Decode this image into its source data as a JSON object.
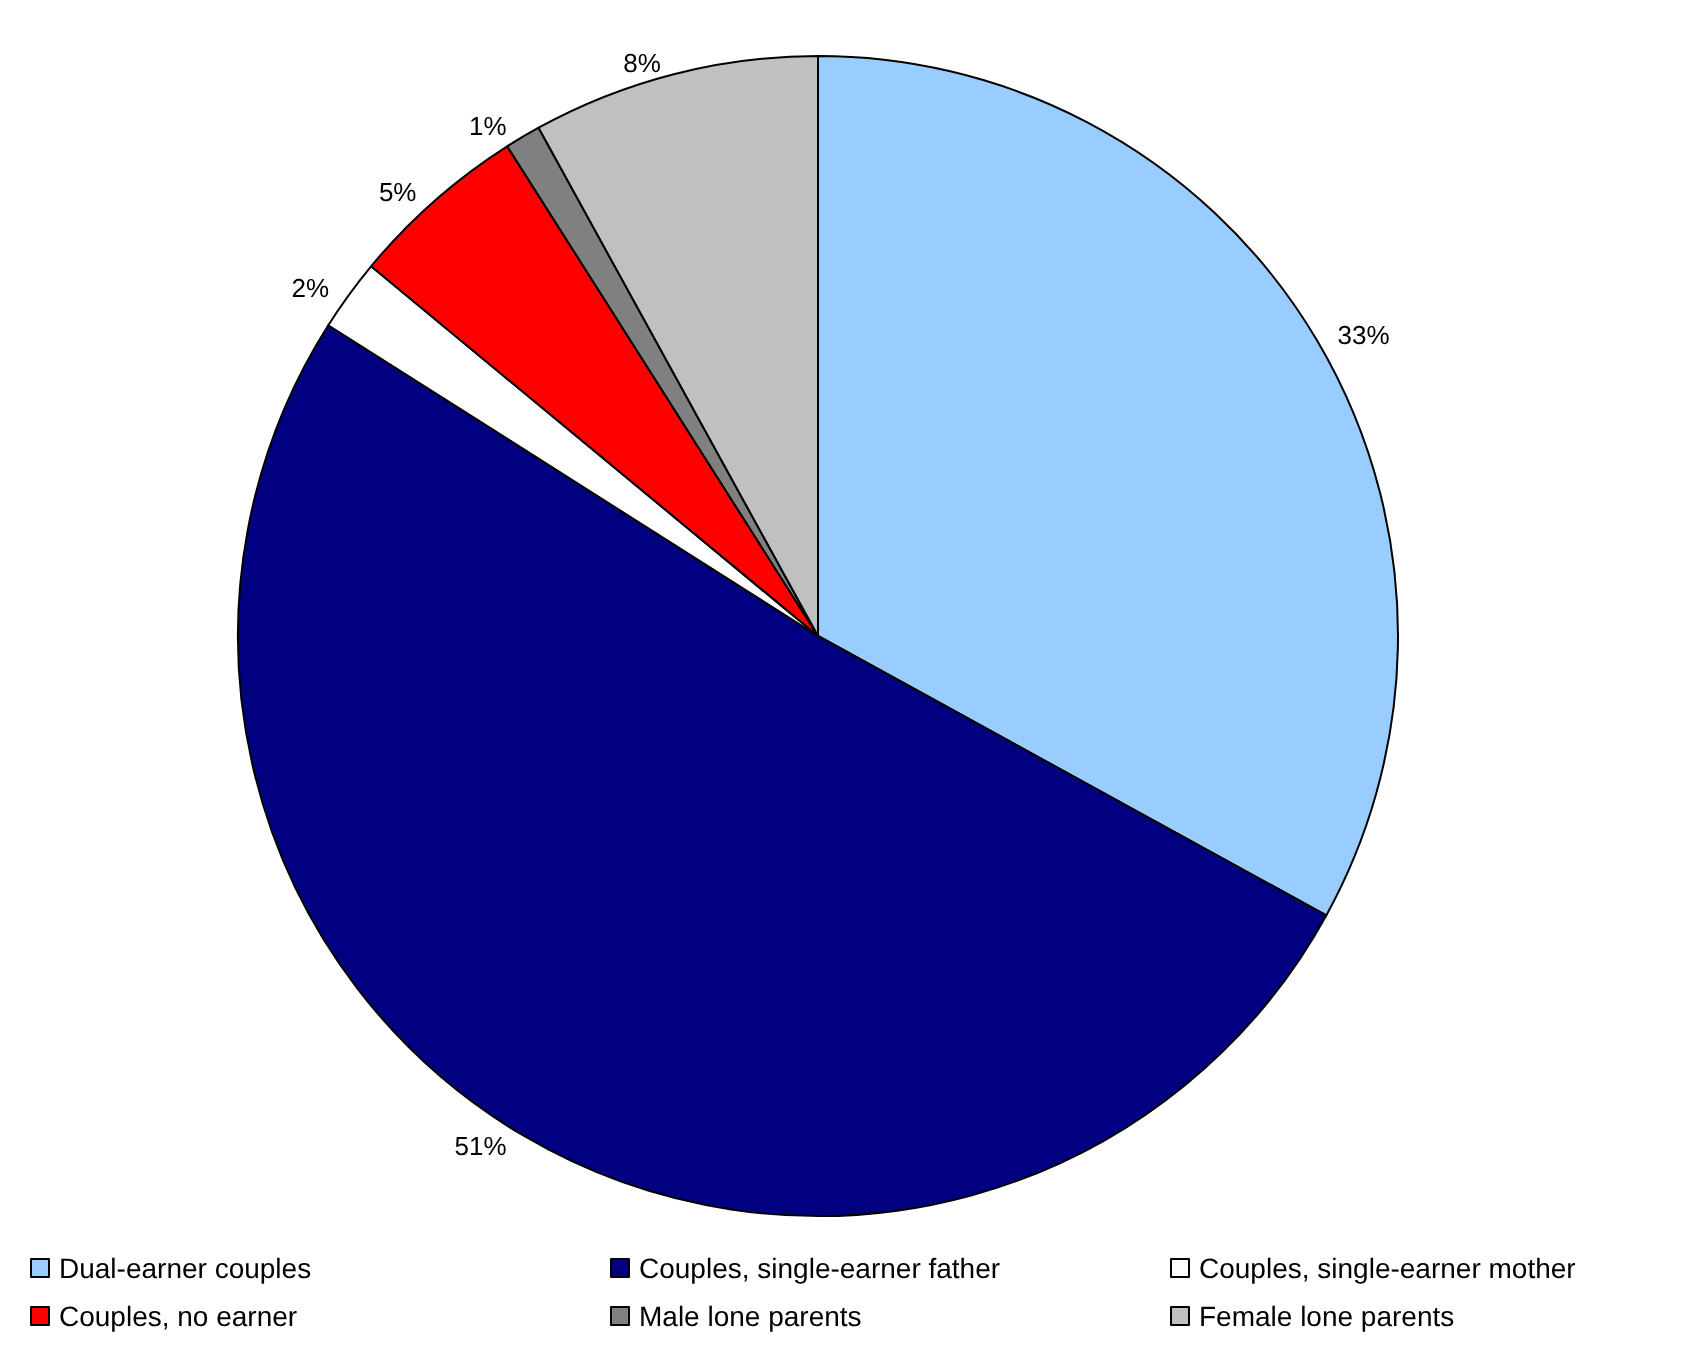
{
  "chart_data": {
    "type": "pie",
    "categories": [
      "Dual-earner couples",
      "Couples, single-earner father",
      "Couples, single-earner mother",
      "Couples, no earner",
      "Male lone parents",
      "Female lone parents"
    ],
    "values": [
      33,
      51,
      2,
      5,
      1,
      8
    ],
    "colors": [
      "#99ccff",
      "#000080",
      "#ffffff",
      "#ff0000",
      "#808080",
      "#c0c0c0"
    ],
    "value_labels": [
      "33%",
      "51%",
      "2%",
      "5%",
      "1%",
      "8%"
    ],
    "legend": "bottom"
  }
}
